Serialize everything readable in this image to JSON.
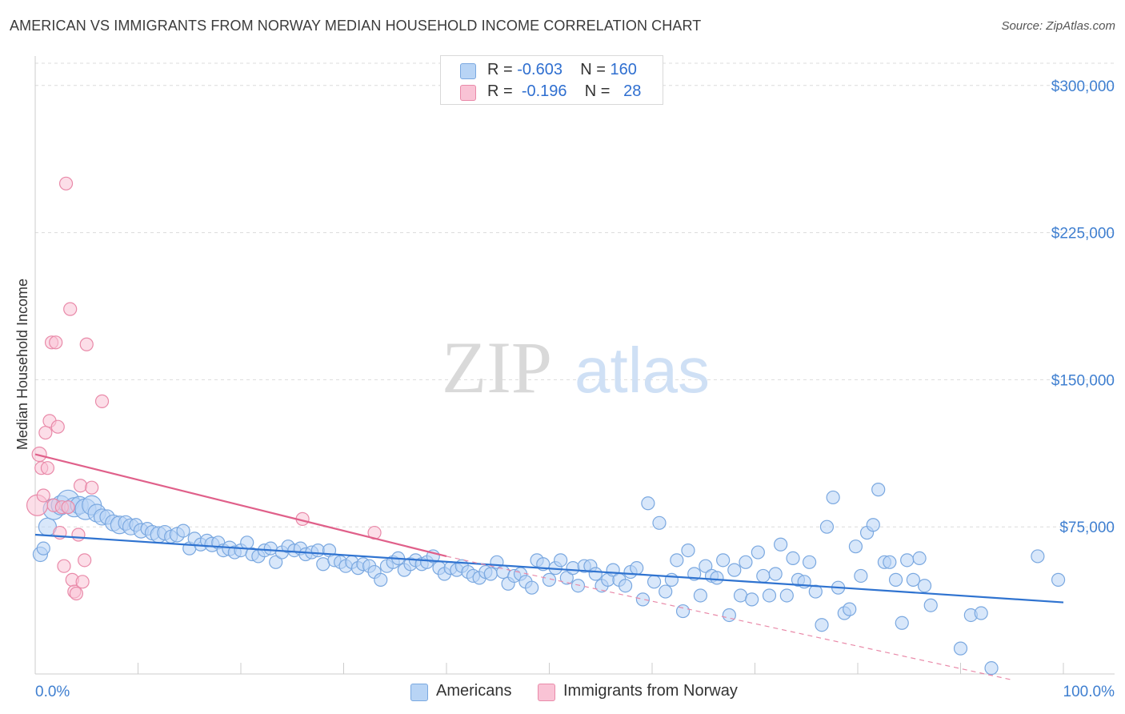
{
  "header": {
    "title": "AMERICAN VS IMMIGRANTS FROM NORWAY MEDIAN HOUSEHOLD INCOME CORRELATION CHART",
    "source": "Source: ZipAtlas.com"
  },
  "watermark": {
    "part1": "ZIP",
    "part2": "atlas"
  },
  "legend": {
    "rows": [
      {
        "r_label": "R =",
        "r_value": "-0.603",
        "n_label": "N =",
        "n_value": "160",
        "color": "#b8d4f5",
        "border": "#7aa8e0"
      },
      {
        "r_label": "R =",
        "r_value": "-0.196",
        "n_label": "N =",
        "n_value": "28",
        "color": "#f9c3d5",
        "border": "#e98aa9"
      }
    ]
  },
  "bottom_legend": [
    {
      "label": "Americans",
      "color": "#b8d4f5",
      "border": "#7aa8e0"
    },
    {
      "label": "Immigrants from Norway",
      "color": "#f9c3d5",
      "border": "#e98aa9"
    }
  ],
  "chart_data": {
    "type": "scatter",
    "title": "AMERICAN VS IMMIGRANTS FROM NORWAY MEDIAN HOUSEHOLD INCOME CORRELATION CHART",
    "xlabel": "",
    "ylabel": "Median Household Income",
    "xlim": [
      0,
      100
    ],
    "ylim": [
      0,
      315000
    ],
    "y_ticks": [
      {
        "value": 75000,
        "label": "$75,000"
      },
      {
        "value": 150000,
        "label": "$150,000"
      },
      {
        "value": 225000,
        "label": "$225,000"
      },
      {
        "value": 300000,
        "label": "$300,000"
      }
    ],
    "x_tick_labels": [
      {
        "value": 0,
        "label": "0.0%"
      },
      {
        "value": 100,
        "label": "100.0%"
      }
    ],
    "x_minor_ticks": [
      0,
      10,
      20,
      30,
      40,
      50,
      60,
      70,
      80,
      90,
      100
    ],
    "grid": true,
    "series": [
      {
        "name": "Americans",
        "color": "#7aa8e0",
        "fill": "#b8d4f5",
        "R": -0.603,
        "N": 160,
        "trend": {
          "x": [
            0,
            100
          ],
          "y": [
            71000,
            36500
          ],
          "color": "#2f73d0"
        },
        "points": [
          [
            0.5,
            61000,
            9
          ],
          [
            0.8,
            64000,
            8
          ],
          [
            1.2,
            75000,
            11
          ],
          [
            1.8,
            84000,
            13
          ],
          [
            2.5,
            86000,
            12
          ],
          [
            3.2,
            88000,
            14
          ],
          [
            3.8,
            85000,
            12
          ],
          [
            4.3,
            86000,
            11
          ],
          [
            4.9,
            84000,
            13
          ],
          [
            5.5,
            86000,
            12
          ],
          [
            6.0,
            82000,
            11
          ],
          [
            6.5,
            80000,
            10
          ],
          [
            7.0,
            80000,
            9
          ],
          [
            7.6,
            77000,
            10
          ],
          [
            8.2,
            76000,
            11
          ],
          [
            8.8,
            77000,
            9
          ],
          [
            9.3,
            75000,
            10
          ],
          [
            9.8,
            76000,
            8
          ],
          [
            10.3,
            73000,
            9
          ],
          [
            10.9,
            74000,
            8
          ],
          [
            11.4,
            72000,
            9
          ],
          [
            12.0,
            71000,
            10
          ],
          [
            12.6,
            72000,
            9
          ],
          [
            13.2,
            70000,
            8
          ],
          [
            13.8,
            71000,
            9
          ],
          [
            14.4,
            73000,
            8
          ],
          [
            15.0,
            64000,
            8
          ],
          [
            15.5,
            69000,
            8
          ],
          [
            16.1,
            66000,
            8
          ],
          [
            16.7,
            68000,
            8
          ],
          [
            17.2,
            66000,
            9
          ],
          [
            17.8,
            67000,
            8
          ],
          [
            18.3,
            63000,
            8
          ],
          [
            18.9,
            64000,
            9
          ],
          [
            19.4,
            62000,
            8
          ],
          [
            20.0,
            63000,
            8
          ],
          [
            20.6,
            67000,
            8
          ],
          [
            21.1,
            61000,
            8
          ],
          [
            21.7,
            60000,
            8
          ],
          [
            22.3,
            63000,
            8
          ],
          [
            22.9,
            64000,
            8
          ],
          [
            23.4,
            57000,
            8
          ],
          [
            24.0,
            62000,
            8
          ],
          [
            24.6,
            65000,
            8
          ],
          [
            25.2,
            63000,
            8
          ],
          [
            25.8,
            64000,
            8
          ],
          [
            26.3,
            61000,
            8
          ],
          [
            26.9,
            62000,
            8
          ],
          [
            27.5,
            63000,
            8
          ],
          [
            28.0,
            56000,
            8
          ],
          [
            28.6,
            63000,
            8
          ],
          [
            29.1,
            58000,
            8
          ],
          [
            29.7,
            57000,
            8
          ],
          [
            30.2,
            55000,
            8
          ],
          [
            30.8,
            57000,
            8
          ],
          [
            31.4,
            54000,
            8
          ],
          [
            31.9,
            56000,
            8
          ],
          [
            32.5,
            55000,
            8
          ],
          [
            33.0,
            52000,
            8
          ],
          [
            33.6,
            48000,
            8
          ],
          [
            34.2,
            55000,
            8
          ],
          [
            34.8,
            57000,
            8
          ],
          [
            35.3,
            59000,
            8
          ],
          [
            35.9,
            53000,
            8
          ],
          [
            36.5,
            56000,
            8
          ],
          [
            37.0,
            58000,
            8
          ],
          [
            37.6,
            56000,
            8
          ],
          [
            38.1,
            57000,
            8
          ],
          [
            38.7,
            60000,
            8
          ],
          [
            39.3,
            54000,
            8
          ],
          [
            39.8,
            51000,
            8
          ],
          [
            40.4,
            54000,
            8
          ],
          [
            41.0,
            53000,
            8
          ],
          [
            41.5,
            55000,
            8
          ],
          [
            42.1,
            52000,
            8
          ],
          [
            42.6,
            50000,
            8
          ],
          [
            43.2,
            49000,
            8
          ],
          [
            43.8,
            52000,
            8
          ],
          [
            44.3,
            51000,
            8
          ],
          [
            44.9,
            57000,
            8
          ],
          [
            45.5,
            52000,
            8
          ],
          [
            46.0,
            46000,
            8
          ],
          [
            46.6,
            50000,
            8
          ],
          [
            47.2,
            51000,
            8
          ],
          [
            47.7,
            47000,
            8
          ],
          [
            48.3,
            44000,
            8
          ],
          [
            48.8,
            58000,
            8
          ],
          [
            49.4,
            56000,
            8
          ],
          [
            50.0,
            48000,
            8
          ],
          [
            50.6,
            54000,
            8
          ],
          [
            51.1,
            58000,
            8
          ],
          [
            51.7,
            49000,
            8
          ],
          [
            52.3,
            54000,
            8
          ],
          [
            52.8,
            45000,
            8
          ],
          [
            53.4,
            55000,
            8
          ],
          [
            54.0,
            55000,
            8
          ],
          [
            54.5,
            51000,
            8
          ],
          [
            55.1,
            45000,
            8
          ],
          [
            55.7,
            48000,
            8
          ],
          [
            56.2,
            53000,
            8
          ],
          [
            56.8,
            48000,
            8
          ],
          [
            57.4,
            45000,
            8
          ],
          [
            57.9,
            52000,
            8
          ],
          [
            58.5,
            54000,
            8
          ],
          [
            59.1,
            38000,
            8
          ],
          [
            59.6,
            87000,
            8
          ],
          [
            60.2,
            47000,
            8
          ],
          [
            60.7,
            77000,
            8
          ],
          [
            61.3,
            42000,
            8
          ],
          [
            61.9,
            48000,
            8
          ],
          [
            62.4,
            58000,
            8
          ],
          [
            63.0,
            32000,
            8
          ],
          [
            63.5,
            63000,
            8
          ],
          [
            64.1,
            51000,
            8
          ],
          [
            64.7,
            40000,
            8
          ],
          [
            65.2,
            55000,
            8
          ],
          [
            65.8,
            50000,
            8
          ],
          [
            66.3,
            49000,
            8
          ],
          [
            66.9,
            58000,
            8
          ],
          [
            67.5,
            30000,
            8
          ],
          [
            68.0,
            53000,
            8
          ],
          [
            68.6,
            40000,
            8
          ],
          [
            69.1,
            57000,
            8
          ],
          [
            69.7,
            38000,
            8
          ],
          [
            70.3,
            62000,
            8
          ],
          [
            70.8,
            50000,
            8
          ],
          [
            71.4,
            40000,
            8
          ],
          [
            72.0,
            51000,
            8
          ],
          [
            72.5,
            66000,
            8
          ],
          [
            73.1,
            40000,
            8
          ],
          [
            73.7,
            59000,
            8
          ],
          [
            74.2,
            48000,
            8
          ],
          [
            74.8,
            47000,
            8
          ],
          [
            75.3,
            57000,
            8
          ],
          [
            75.9,
            42000,
            8
          ],
          [
            76.5,
            25000,
            8
          ],
          [
            77.0,
            75000,
            8
          ],
          [
            77.6,
            90000,
            8
          ],
          [
            78.1,
            44000,
            8
          ],
          [
            78.7,
            31000,
            8
          ],
          [
            79.2,
            33000,
            8
          ],
          [
            79.8,
            65000,
            8
          ],
          [
            80.3,
            50000,
            8
          ],
          [
            80.9,
            72000,
            8
          ],
          [
            81.5,
            76000,
            8
          ],
          [
            82.0,
            94000,
            8
          ],
          [
            82.6,
            57000,
            8
          ],
          [
            83.1,
            57000,
            8
          ],
          [
            83.7,
            48000,
            8
          ],
          [
            84.3,
            26000,
            8
          ],
          [
            84.8,
            58000,
            8
          ],
          [
            85.4,
            48000,
            8
          ],
          [
            86.0,
            59000,
            8
          ],
          [
            86.5,
            45000,
            8
          ],
          [
            87.1,
            35000,
            8
          ],
          [
            90.0,
            13000,
            8
          ],
          [
            91.0,
            30000,
            8
          ],
          [
            92.0,
            31000,
            8
          ],
          [
            93.0,
            3000,
            8
          ],
          [
            97.5,
            60000,
            8
          ],
          [
            99.5,
            48000,
            8
          ]
        ]
      },
      {
        "name": "Immigrants from Norway",
        "color": "#e98aa9",
        "fill": "#f9c3d5",
        "R": -0.196,
        "N": 28,
        "trend": {
          "x": [
            0,
            40
          ],
          "y": [
            112000,
            60000
          ],
          "color": "#e0608a"
        },
        "trend_dashed": {
          "x": [
            40,
            95
          ],
          "y": [
            60000,
            -3000
          ],
          "color": "#e98aa9"
        },
        "points": [
          [
            0.2,
            86000,
            13
          ],
          [
            0.4,
            112000,
            9
          ],
          [
            0.6,
            105000,
            8
          ],
          [
            0.8,
            91000,
            8
          ],
          [
            1.0,
            123000,
            8
          ],
          [
            1.2,
            105000,
            8
          ],
          [
            1.4,
            129000,
            8
          ],
          [
            1.6,
            169000,
            8
          ],
          [
            1.8,
            86000,
            8
          ],
          [
            2.0,
            169000,
            8
          ],
          [
            2.2,
            126000,
            8
          ],
          [
            2.4,
            72000,
            8
          ],
          [
            2.6,
            85000,
            8
          ],
          [
            2.8,
            55000,
            8
          ],
          [
            3.0,
            250000,
            8
          ],
          [
            3.2,
            85000,
            8
          ],
          [
            3.4,
            186000,
            8
          ],
          [
            3.6,
            48000,
            8
          ],
          [
            3.8,
            42000,
            8
          ],
          [
            4.0,
            41000,
            8
          ],
          [
            4.2,
            71000,
            8
          ],
          [
            4.4,
            96000,
            8
          ],
          [
            4.6,
            47000,
            8
          ],
          [
            4.8,
            58000,
            8
          ],
          [
            5.0,
            168000,
            8
          ],
          [
            5.5,
            95000,
            8
          ],
          [
            6.5,
            139000,
            8
          ],
          [
            26.0,
            79000,
            8
          ],
          [
            33.0,
            72000,
            8
          ]
        ]
      }
    ]
  }
}
